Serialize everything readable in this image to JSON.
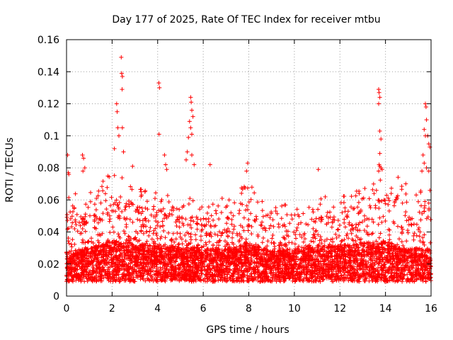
{
  "chart_data": {
    "type": "scatter",
    "title": "Day 177 of 2025, Rate Of TEC Index for receiver mtbu",
    "xlabel": "GPS time / hours",
    "ylabel": "ROTI / TECUs",
    "xlim": [
      0,
      16
    ],
    "ylim": [
      0,
      0.16
    ],
    "x_ticks": [
      "0",
      "2",
      "4",
      "6",
      "8",
      "10",
      "12",
      "14",
      "16"
    ],
    "y_ticks": [
      "0",
      "0.02",
      "0.04",
      "0.06",
      "0.08",
      "0.1",
      "0.12",
      "0.14",
      "0.16"
    ],
    "grid": true,
    "marker": "+",
    "colors": {
      "points": "#ff0000"
    },
    "baseline_profile": {
      "x": [
        0,
        1,
        2,
        3,
        4,
        5,
        6,
        7,
        8,
        9,
        10,
        11,
        12,
        13,
        14,
        15,
        16
      ],
      "typical": [
        0.021,
        0.022,
        0.025,
        0.024,
        0.023,
        0.023,
        0.022,
        0.022,
        0.024,
        0.021,
        0.022,
        0.023,
        0.023,
        0.024,
        0.025,
        0.022,
        0.022
      ],
      "upper": [
        0.05,
        0.055,
        0.065,
        0.058,
        0.055,
        0.055,
        0.045,
        0.05,
        0.06,
        0.045,
        0.045,
        0.05,
        0.05,
        0.055,
        0.065,
        0.06,
        0.055
      ]
    },
    "outliers": [
      {
        "x": 0.05,
        "y": 0.088
      },
      {
        "x": 0.08,
        "y": 0.077
      },
      {
        "x": 0.1,
        "y": 0.076
      },
      {
        "x": 0.7,
        "y": 0.088
      },
      {
        "x": 0.75,
        "y": 0.086
      },
      {
        "x": 0.8,
        "y": 0.08
      },
      {
        "x": 0.72,
        "y": 0.078
      },
      {
        "x": 2.1,
        "y": 0.092
      },
      {
        "x": 2.2,
        "y": 0.12
      },
      {
        "x": 2.22,
        "y": 0.115
      },
      {
        "x": 2.25,
        "y": 0.105
      },
      {
        "x": 2.4,
        "y": 0.149
      },
      {
        "x": 2.42,
        "y": 0.139
      },
      {
        "x": 2.45,
        "y": 0.137
      },
      {
        "x": 2.44,
        "y": 0.129
      },
      {
        "x": 2.45,
        "y": 0.105
      },
      {
        "x": 2.3,
        "y": 0.1
      },
      {
        "x": 2.5,
        "y": 0.09
      },
      {
        "x": 2.9,
        "y": 0.081
      },
      {
        "x": 4.05,
        "y": 0.133
      },
      {
        "x": 4.08,
        "y": 0.13
      },
      {
        "x": 4.06,
        "y": 0.101
      },
      {
        "x": 4.3,
        "y": 0.088
      },
      {
        "x": 4.35,
        "y": 0.082
      },
      {
        "x": 4.4,
        "y": 0.079
      },
      {
        "x": 5.45,
        "y": 0.124
      },
      {
        "x": 5.47,
        "y": 0.121
      },
      {
        "x": 5.5,
        "y": 0.116
      },
      {
        "x": 5.55,
        "y": 0.112
      },
      {
        "x": 5.4,
        "y": 0.109
      },
      {
        "x": 5.45,
        "y": 0.105
      },
      {
        "x": 5.5,
        "y": 0.101
      },
      {
        "x": 5.35,
        "y": 0.099
      },
      {
        "x": 5.3,
        "y": 0.09
      },
      {
        "x": 5.5,
        "y": 0.088
      },
      {
        "x": 5.25,
        "y": 0.085
      },
      {
        "x": 5.6,
        "y": 0.082
      },
      {
        "x": 6.3,
        "y": 0.082
      },
      {
        "x": 7.95,
        "y": 0.083
      },
      {
        "x": 7.9,
        "y": 0.078
      },
      {
        "x": 11.05,
        "y": 0.079
      },
      {
        "x": 13.7,
        "y": 0.129
      },
      {
        "x": 13.72,
        "y": 0.127
      },
      {
        "x": 13.75,
        "y": 0.124
      },
      {
        "x": 13.7,
        "y": 0.12
      },
      {
        "x": 13.75,
        "y": 0.103
      },
      {
        "x": 13.8,
        "y": 0.098
      },
      {
        "x": 13.75,
        "y": 0.089
      },
      {
        "x": 13.72,
        "y": 0.082
      },
      {
        "x": 13.75,
        "y": 0.081
      },
      {
        "x": 13.8,
        "y": 0.08
      },
      {
        "x": 13.85,
        "y": 0.079
      },
      {
        "x": 13.7,
        "y": 0.078
      },
      {
        "x": 13.6,
        "y": 0.066
      },
      {
        "x": 13.5,
        "y": 0.064
      },
      {
        "x": 15.75,
        "y": 0.12
      },
      {
        "x": 15.78,
        "y": 0.118
      },
      {
        "x": 15.8,
        "y": 0.11
      },
      {
        "x": 15.7,
        "y": 0.104
      },
      {
        "x": 15.75,
        "y": 0.1
      },
      {
        "x": 15.85,
        "y": 0.1
      },
      {
        "x": 15.9,
        "y": 0.095
      },
      {
        "x": 15.95,
        "y": 0.093
      },
      {
        "x": 15.65,
        "y": 0.088
      },
      {
        "x": 15.7,
        "y": 0.083
      },
      {
        "x": 15.8,
        "y": 0.08
      },
      {
        "x": 15.9,
        "y": 0.078
      },
      {
        "x": 15.6,
        "y": 0.078
      },
      {
        "x": 15.95,
        "y": 0.066
      },
      {
        "x": 15.9,
        "y": 0.058
      }
    ]
  }
}
